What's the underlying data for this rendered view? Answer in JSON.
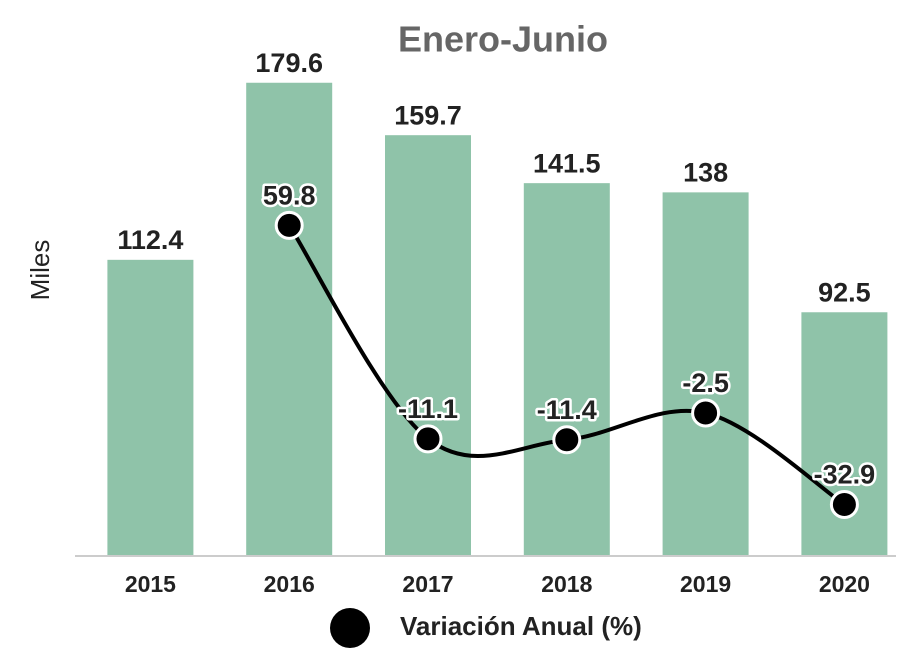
{
  "chart_data": {
    "type": "bar_line",
    "title": "Enero-Junio",
    "y_label": "Miles",
    "categories": [
      "2015",
      "2016",
      "2017",
      "2018",
      "2019",
      "2020"
    ],
    "values": [
      112.4,
      179.6,
      159.7,
      141.5,
      138,
      92.5
    ],
    "color": "#8fc3a9",
    "ylim": [
      0,
      200
    ],
    "series": [
      {
        "name": "Variación Anual (%)",
        "color": "#000000",
        "axis": "y2",
        "values": [
          null,
          59.8,
          -11.1,
          -11.4,
          -2.5,
          -32.9
        ]
      }
    ],
    "y2lim": [
      -50,
      125
    ],
    "legend": "bottom"
  }
}
